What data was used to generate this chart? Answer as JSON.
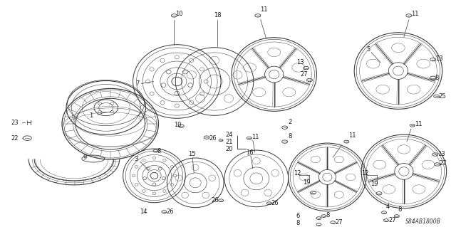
{
  "background_color": "#ffffff",
  "diagram_code": "S84AB1800B",
  "figsize": [
    6.4,
    3.19
  ],
  "dpi": 100,
  "line_color": "#3a3a3a",
  "text_color": "#1a1a1a",
  "font_size": 6.0
}
